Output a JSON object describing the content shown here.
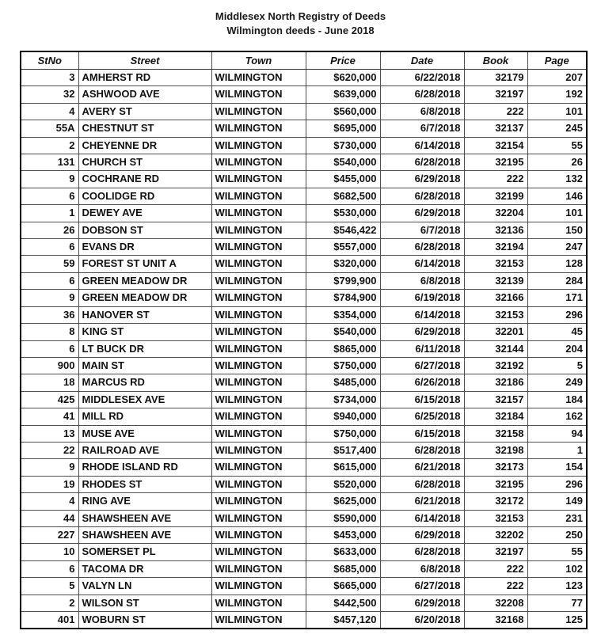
{
  "page": {
    "title_line1": "Middlesex North Registry of Deeds",
    "title_line2": "Wilmington deeds - June 2018"
  },
  "colors": {
    "background": "#ffffff",
    "text": "#111111",
    "grid_line": "#4f4f4f",
    "outer_border": "#000000"
  },
  "table": {
    "columns": [
      {
        "key": "stno",
        "label": "StNo",
        "align": "right"
      },
      {
        "key": "street",
        "label": "Street",
        "align": "left"
      },
      {
        "key": "town",
        "label": "Town",
        "align": "left"
      },
      {
        "key": "price",
        "label": "Price",
        "align": "right"
      },
      {
        "key": "date",
        "label": "Date",
        "align": "right"
      },
      {
        "key": "book",
        "label": "Book",
        "align": "right"
      },
      {
        "key": "page",
        "label": "Page",
        "align": "right"
      }
    ],
    "rows": [
      [
        "3",
        "AMHERST RD",
        "WILMINGTON",
        "$620,000",
        "6/22/2018",
        "32179",
        "207"
      ],
      [
        "32",
        "ASHWOOD AVE",
        "WILMINGTON",
        "$639,000",
        "6/28/2018",
        "32197",
        "192"
      ],
      [
        "4",
        "AVERY ST",
        "WILMINGTON",
        "$560,000",
        "6/8/2018",
        "222",
        "101"
      ],
      [
        "55A",
        "CHESTNUT ST",
        "WILMINGTON",
        "$695,000",
        "6/7/2018",
        "32137",
        "245"
      ],
      [
        "2",
        "CHEYENNE DR",
        "WILMINGTON",
        "$730,000",
        "6/14/2018",
        "32154",
        "55"
      ],
      [
        "131",
        "CHURCH ST",
        "WILMINGTON",
        "$540,000",
        "6/28/2018",
        "32195",
        "26"
      ],
      [
        "9",
        "COCHRANE RD",
        "WILMINGTON",
        "$455,000",
        "6/29/2018",
        "222",
        "132"
      ],
      [
        "6",
        "COOLIDGE RD",
        "WILMINGTON",
        "$682,500",
        "6/28/2018",
        "32199",
        "146"
      ],
      [
        "1",
        "DEWEY AVE",
        "WILMINGTON",
        "$530,000",
        "6/29/2018",
        "32204",
        "101"
      ],
      [
        "26",
        "DOBSON ST",
        "WILMINGTON",
        "$546,422",
        "6/7/2018",
        "32136",
        "150"
      ],
      [
        "6",
        "EVANS DR",
        "WILMINGTON",
        "$557,000",
        "6/28/2018",
        "32194",
        "247"
      ],
      [
        "59",
        "FOREST ST UNIT A",
        "WILMINGTON",
        "$320,000",
        "6/14/2018",
        "32153",
        "128"
      ],
      [
        "6",
        "GREEN MEADOW DR",
        "WILMINGTON",
        "$799,900",
        "6/8/2018",
        "32139",
        "284"
      ],
      [
        "9",
        "GREEN MEADOW DR",
        "WILMINGTON",
        "$784,900",
        "6/19/2018",
        "32166",
        "171"
      ],
      [
        "36",
        "HANOVER ST",
        "WILMINGTON",
        "$354,000",
        "6/14/2018",
        "32153",
        "296"
      ],
      [
        "8",
        "KING ST",
        "WILMINGTON",
        "$540,000",
        "6/29/2018",
        "32201",
        "45"
      ],
      [
        "6",
        "LT BUCK DR",
        "WILMINGTON",
        "$865,000",
        "6/11/2018",
        "32144",
        "204"
      ],
      [
        "900",
        "MAIN ST",
        "WILMINGTON",
        "$750,000",
        "6/27/2018",
        "32192",
        "5"
      ],
      [
        "18",
        "MARCUS RD",
        "WILMINGTON",
        "$485,000",
        "6/26/2018",
        "32186",
        "249"
      ],
      [
        "425",
        "MIDDLESEX AVE",
        "WILMINGTON",
        "$734,000",
        "6/15/2018",
        "32157",
        "184"
      ],
      [
        "41",
        "MILL RD",
        "WILMINGTON",
        "$940,000",
        "6/25/2018",
        "32184",
        "162"
      ],
      [
        "13",
        "MUSE AVE",
        "WILMINGTON",
        "$750,000",
        "6/15/2018",
        "32158",
        "94"
      ],
      [
        "22",
        "RAILROAD AVE",
        "WILMINGTON",
        "$517,400",
        "6/28/2018",
        "32198",
        "1"
      ],
      [
        "9",
        "RHODE ISLAND RD",
        "WILMINGTON",
        "$615,000",
        "6/21/2018",
        "32173",
        "154"
      ],
      [
        "19",
        "RHODES ST",
        "WILMINGTON",
        "$520,000",
        "6/28/2018",
        "32195",
        "296"
      ],
      [
        "4",
        "RING AVE",
        "WILMINGTON",
        "$625,000",
        "6/21/2018",
        "32172",
        "149"
      ],
      [
        "44",
        "SHAWSHEEN AVE",
        "WILMINGTON",
        "$590,000",
        "6/14/2018",
        "32153",
        "231"
      ],
      [
        "227",
        "SHAWSHEEN AVE",
        "WILMINGTON",
        "$453,000",
        "6/29/2018",
        "32202",
        "250"
      ],
      [
        "10",
        "SOMERSET PL",
        "WILMINGTON",
        "$633,000",
        "6/28/2018",
        "32197",
        "55"
      ],
      [
        "6",
        "TACOMA DR",
        "WILMINGTON",
        "$685,000",
        "6/8/2018",
        "222",
        "102"
      ],
      [
        "5",
        "VALYN LN",
        "WILMINGTON",
        "$665,000",
        "6/27/2018",
        "222",
        "123"
      ],
      [
        "2",
        "WILSON ST",
        "WILMINGTON",
        "$442,500",
        "6/29/2018",
        "32208",
        "77"
      ],
      [
        "401",
        "WOBURN ST",
        "WILMINGTON",
        "$457,120",
        "6/20/2018",
        "32168",
        "125"
      ]
    ]
  }
}
